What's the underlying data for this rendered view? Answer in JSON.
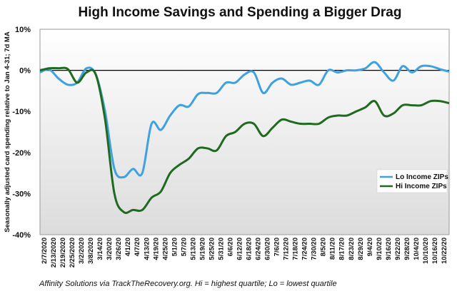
{
  "chart_data": {
    "type": "line",
    "title": "High Income Savings and Spending a Bigger Drag",
    "ylabel": "Seasonally adjusted card spending relative to Jan 4-31; 7d MA",
    "source_note": "Affinity Solutions via TrackTheRecovery.org. Hi = highest quartile; Lo = lowest quartile",
    "ylim": [
      -40,
      10
    ],
    "yticks": [
      10,
      0,
      -10,
      -20,
      -30,
      -40
    ],
    "ytick_labels": [
      "10%",
      "0%",
      "-10%",
      "-20%",
      "-30%",
      "-40%"
    ],
    "x_tick_labels": [
      "2/7/2020",
      "2/13/2020",
      "2/19/2020",
      "2/25/2020",
      "3/2/2020",
      "3/8/2020",
      "3/14/20",
      "3/20/20",
      "3/26/20",
      "4/1/20",
      "4/7/20",
      "4/13/20",
      "4/19/20",
      "4/25/20",
      "5/1/20",
      "5/7/20",
      "5/13/20",
      "5/19/20",
      "5/25/20",
      "5/31/20",
      "6/6/20",
      "6/12/20",
      "6/18/20",
      "6/24/20",
      "6/30/20",
      "7/6/20",
      "7/12/20",
      "7/18/20",
      "7/24/20",
      "7/30/20",
      "8/5/20",
      "8/11/20",
      "8/17/20",
      "8/23/20",
      "8/29/20",
      "9/4/20",
      "9/10/20",
      "9/16/20",
      "9/22/20",
      "9/28/20",
      "10/4/20",
      "10/10/20",
      "10/16/20",
      "10/22/20"
    ],
    "grid": false,
    "legend_position": "right",
    "x": [
      "2/7",
      "2/13",
      "2/19",
      "2/25",
      "3/2",
      "3/8",
      "3/14",
      "3/20",
      "3/26",
      "4/1",
      "4/7",
      "4/13",
      "4/19",
      "4/25",
      "5/1",
      "5/7",
      "5/13",
      "5/19",
      "5/25",
      "5/31",
      "6/6",
      "6/12",
      "6/18",
      "6/24",
      "6/30",
      "7/6",
      "7/12",
      "7/18",
      "7/24",
      "7/30",
      "8/5",
      "8/11",
      "8/17",
      "8/23",
      "8/29",
      "9/4",
      "9/10",
      "9/16",
      "9/22",
      "9/28",
      "10/4",
      "10/10",
      "10/16",
      "10/22",
      "10/28"
    ],
    "series": [
      {
        "name": "Lo Income ZIPs",
        "color": "#3fa1e0",
        "values": [
          -0.5,
          0.2,
          -2.0,
          -3.5,
          -3.0,
          0.5,
          -1.0,
          -10.0,
          -24.0,
          -26.0,
          -24.0,
          -25.0,
          -13.0,
          -14.5,
          -11.0,
          -8.5,
          -8.8,
          -5.8,
          -5.5,
          -5.5,
          -3.0,
          -3.0,
          -1.0,
          -0.5,
          -5.5,
          -3.0,
          -2.0,
          -3.5,
          -3.0,
          -2.5,
          -3.5,
          0.0,
          -0.5,
          0.0,
          0.0,
          0.5,
          2.0,
          -0.5,
          -2.5,
          1.0,
          -0.5,
          1.0,
          1.0,
          0.3,
          -0.3
        ]
      },
      {
        "name": "Hi Income ZIPs",
        "color": "#1f6a1f",
        "values": [
          0.0,
          0.5,
          0.5,
          0.3,
          -3.0,
          -0.5,
          -1.0,
          -12.0,
          -30.0,
          -34.5,
          -34.0,
          -34.0,
          -31.0,
          -29.5,
          -25.0,
          -23.0,
          -21.5,
          -19.0,
          -19.0,
          -19.5,
          -16.0,
          -15.0,
          -13.0,
          -13.0,
          -16.0,
          -14.0,
          -12.0,
          -12.5,
          -13.0,
          -13.0,
          -13.0,
          -11.5,
          -11.0,
          -11.0,
          -10.0,
          -9.0,
          -7.5,
          -11.0,
          -10.5,
          -8.5,
          -8.5,
          -8.5,
          -7.5,
          -7.5,
          -8.0
        ]
      }
    ]
  }
}
